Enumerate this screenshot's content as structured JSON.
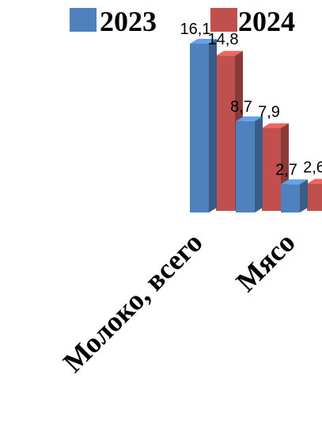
{
  "chart_data": {
    "type": "bar",
    "categories": [
      "Молоко, всего",
      "",
      "Мясо"
    ],
    "series": [
      {
        "name": "2023",
        "color": "#4F81BD",
        "values": [
          16.1,
          8.7,
          2.7
        ],
        "labels": [
          "16,1",
          "8,7",
          "2,7"
        ]
      },
      {
        "name": "2024",
        "color": "#C0504D",
        "values": [
          14.8,
          7.9,
          2.6
        ],
        "labels": [
          "14,8",
          "7,9",
          "2,6"
        ]
      }
    ],
    "title": "",
    "xlabel": "",
    "ylabel": "",
    "ylim": [
      0,
      16.1
    ],
    "grid": false,
    "legend": "top",
    "style": "3d-clustered-column"
  }
}
